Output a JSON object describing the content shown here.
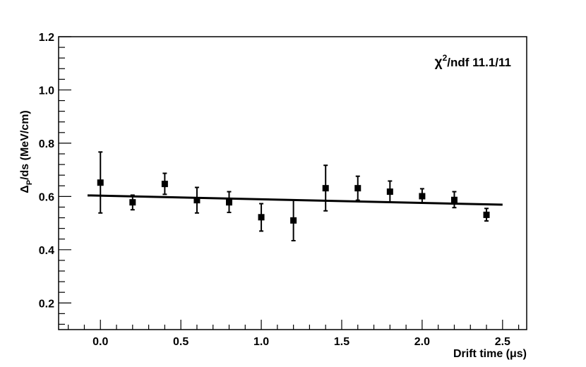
{
  "chart_data": {
    "type": "scatter",
    "xlabel": "Drift time (μs)",
    "ylabel_main": "Δ",
    "ylabel_sub": "P",
    "ylabel_rest": "/ds (MeV/cm)",
    "xlim": [
      -0.26,
      2.65
    ],
    "ylim": [
      0.1,
      1.2
    ],
    "x_ticks": [
      0.0,
      0.5,
      1.0,
      1.5,
      2.0,
      2.5
    ],
    "x_tick_labels": [
      "0.0",
      "0.5",
      "1.0",
      "1.5",
      "2.0",
      "2.5"
    ],
    "y_ticks": [
      0.2,
      0.4,
      0.6,
      0.8,
      1.0,
      1.2
    ],
    "y_tick_labels": [
      "0.2",
      "0.4",
      "0.6",
      "0.8",
      "1.0",
      "1.2"
    ],
    "points": [
      {
        "x": 0.0,
        "y": 0.652,
        "ylow": 0.538,
        "yhigh": 0.767
      },
      {
        "x": 0.2,
        "y": 0.578,
        "ylow": 0.55,
        "yhigh": 0.605
      },
      {
        "x": 0.4,
        "y": 0.647,
        "ylow": 0.608,
        "yhigh": 0.687
      },
      {
        "x": 0.6,
        "y": 0.586,
        "ylow": 0.538,
        "yhigh": 0.634
      },
      {
        "x": 0.8,
        "y": 0.578,
        "ylow": 0.54,
        "yhigh": 0.618
      },
      {
        "x": 1.0,
        "y": 0.522,
        "ylow": 0.47,
        "yhigh": 0.573
      },
      {
        "x": 1.2,
        "y": 0.51,
        "ylow": 0.434,
        "yhigh": 0.587
      },
      {
        "x": 1.4,
        "y": 0.631,
        "ylow": 0.546,
        "yhigh": 0.717
      },
      {
        "x": 1.6,
        "y": 0.631,
        "ylow": 0.586,
        "yhigh": 0.676
      },
      {
        "x": 1.8,
        "y": 0.618,
        "ylow": 0.578,
        "yhigh": 0.658
      },
      {
        "x": 2.0,
        "y": 0.601,
        "ylow": 0.575,
        "yhigh": 0.629
      },
      {
        "x": 2.2,
        "y": 0.587,
        "ylow": 0.558,
        "yhigh": 0.618
      },
      {
        "x": 2.4,
        "y": 0.531,
        "ylow": 0.508,
        "yhigh": 0.555
      }
    ],
    "fit_line": {
      "x": [
        -0.08,
        2.5
      ],
      "y": [
        0.604,
        0.569
      ]
    },
    "annotation_chi": "χ",
    "annotation_sup": "2",
    "annotation_rest": "/ndf  11.1/11"
  }
}
